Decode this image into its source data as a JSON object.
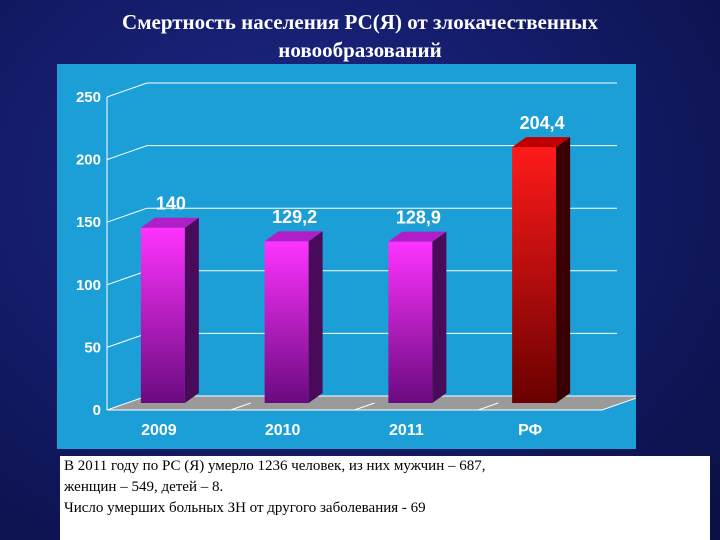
{
  "slide": {
    "title_line1": "Смертность населения РС(Я) от злокачественных",
    "title_line2": "новообразований"
  },
  "caption": {
    "line1": "В 2011 году по РС (Я) умерло 1236 человек, из них мужчин – 687,",
    "line2": "женщин – 549, детей – 8.",
    "line3": "Число умерших больных ЗН от другого заболевания - 69"
  },
  "chart_data": {
    "type": "bar",
    "categories": [
      "2009",
      "2010",
      "2011",
      "РФ"
    ],
    "values": [
      140,
      129.2,
      128.9,
      204.4
    ],
    "data_labels": [
      "140",
      "129,2",
      "128,9",
      "204,4"
    ],
    "y_ticks": [
      "0",
      "50",
      "100",
      "150",
      "200",
      "250"
    ],
    "ylim": [
      0,
      250
    ],
    "grid": true,
    "three_d": true,
    "colors": {
      "bar_top": "#ff33ff",
      "bar_bottom": "#6a0a80",
      "bar_side": "#4a0a5a",
      "bar_cap": "#b01ec8",
      "rf_top": "#ff1a1a",
      "rf_bottom": "#6a0000",
      "rf_side": "#3a0000",
      "rf_cap": "#c00000",
      "floor": "#9a9a9a",
      "grid": "#ffffff",
      "panel": "#1b9fd6"
    }
  }
}
